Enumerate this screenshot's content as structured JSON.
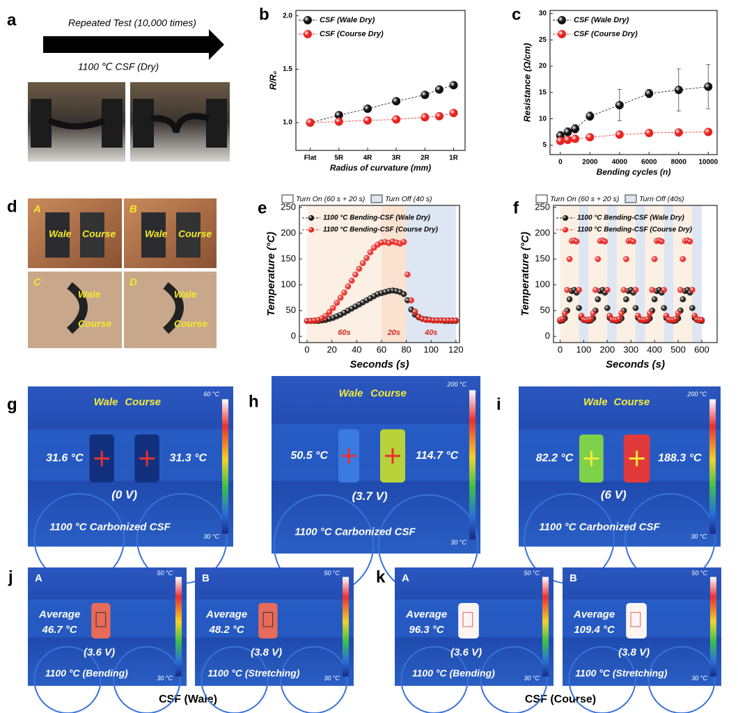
{
  "figure": {
    "a": {
      "label": "a",
      "arrow_text": "Repeated Test (10,000 times)",
      "caption": "1100 ℃ CSF (Dry)"
    },
    "d": {
      "label": "d",
      "photos": [
        {
          "letter": "A",
          "texts": [
            "Wale",
            "Course"
          ]
        },
        {
          "letter": "B",
          "texts": [
            "Wale",
            "Course"
          ]
        },
        {
          "letter": "C",
          "texts": [
            "Wale",
            "Course"
          ]
        },
        {
          "letter": "D",
          "texts": [
            "Wale",
            "Course"
          ]
        }
      ]
    },
    "thermal": [
      {
        "label": "g",
        "top": [
          "Wale",
          "Course"
        ],
        "readings": [
          "31.6 °C",
          "31.3 °C"
        ],
        "voltage": "(0 V)",
        "caption": "1100 °C Carbonized CSF",
        "scale_max": "60 °C",
        "scale_min": "30 °C"
      },
      {
        "label": "h",
        "top": [
          "Wale",
          "Course"
        ],
        "readings": [
          "50.5 °C",
          "114.7 °C"
        ],
        "voltage": "(3.7 V)",
        "caption": "1100 °C Carbonized CSF",
        "scale_max": "200 °C",
        "scale_min": "30 °C"
      },
      {
        "label": "i",
        "top": [
          "Wale",
          "Course"
        ],
        "readings": [
          "82.2 °C",
          "188.3 °C"
        ],
        "voltage": "(6 V)",
        "caption": "1100 °C Carbonized CSF",
        "scale_max": "200 °C",
        "scale_min": "30 °C"
      }
    ],
    "groups": [
      {
        "label": "j",
        "name": "CSF (Wale)",
        "images": [
          {
            "letter": "A",
            "average": "Average",
            "value": "46.7 °C",
            "voltage": "(3.6 V)",
            "caption": "1100 °C (Bending)",
            "scale_max": "50 °C",
            "scale_min": "30 °C"
          },
          {
            "letter": "B",
            "average": "Average",
            "value": "48.2 °C",
            "voltage": "(3.8 V)",
            "caption": "1100 °C (Stretching)",
            "scale_max": "50 °C",
            "scale_min": "30 °C"
          }
        ]
      },
      {
        "label": "k",
        "name": "CSF (Course)",
        "images": [
          {
            "letter": "A",
            "average": "Average",
            "value": "96.3 °C",
            "voltage": "(3.6 V)",
            "caption": "1100 °C (Bending)",
            "scale_max": "50 °C",
            "scale_min": "30 °C"
          },
          {
            "letter": "B",
            "average": "Average",
            "value": "109.4 °C",
            "voltage": "(3.8 V)",
            "caption": "1100 °C (Stretching)",
            "scale_max": "50 °C",
            "scale_min": "30 °C"
          }
        ]
      }
    ]
  },
  "chart_data": [
    {
      "label": "b",
      "type": "line",
      "xlabel": "Radius of curvature (mm)",
      "ylabel": "R/R₀",
      "x": [
        0,
        1,
        2,
        3,
        4,
        4.5,
        5
      ],
      "xticks": [
        {
          "value": 0,
          "label": "Flat"
        },
        {
          "value": 1,
          "label": "5R"
        },
        {
          "value": 2,
          "label": "4R"
        },
        {
          "value": 3,
          "label": "3R"
        },
        {
          "value": 4,
          "label": "2R"
        },
        {
          "value": 5,
          "label": "1R"
        }
      ],
      "xlim": [
        -0.5,
        5.4
      ],
      "ylim": [
        0.74,
        2.05
      ],
      "yticks": [
        {
          "value": 1,
          "label": "1.0"
        },
        1.5,
        {
          "value": 2,
          "label": "2.0"
        }
      ],
      "legend": "upper left",
      "series": [
        {
          "name": "CSF (Wale Dry)",
          "color": "#111111",
          "values": [
            1.0,
            1.07,
            1.13,
            1.2,
            1.26,
            1.31,
            1.35
          ]
        },
        {
          "name": "CSF (Course Dry)",
          "color": "#e8231f",
          "values": [
            1.0,
            1.01,
            1.02,
            1.03,
            1.05,
            1.06,
            1.09
          ]
        }
      ]
    },
    {
      "label": "c",
      "type": "line",
      "xlabel": "Bending cycles (n)",
      "ylabel": "Resistance (Ω/cm)",
      "x": [
        0,
        500,
        1000,
        2000,
        4000,
        6000,
        8000,
        10000
      ],
      "xticks": [
        0,
        2000,
        4000,
        6000,
        8000,
        10000
      ],
      "xlim": [
        -700,
        10600
      ],
      "ylim": [
        3.2,
        30.6
      ],
      "yticks": [
        5,
        10,
        15,
        20,
        25,
        30
      ],
      "legend": "upper left",
      "series": [
        {
          "name": "CSF (Wale Dry)",
          "color": "#111111",
          "values": [
            6.8,
            7.5,
            8.1,
            10.5,
            12.6,
            14.8,
            15.5,
            16.1
          ],
          "errors": [
            0.8,
            0.8,
            0.8,
            0.8,
            3.0,
            0.8,
            4.0,
            4.2
          ]
        },
        {
          "name": "CSF (Course Dry)",
          "color": "#e8231f",
          "values": [
            5.8,
            6.0,
            6.2,
            6.5,
            7.0,
            7.3,
            7.4,
            7.5
          ],
          "errors": [
            0.3,
            0.3,
            0.3,
            0.3,
            0.4,
            0.3,
            0.3,
            0.4
          ]
        }
      ]
    },
    {
      "label": "e",
      "type": "scatter",
      "xlabel": "Seconds (s)",
      "ylabel": "Temperature (°C)",
      "xlim": [
        -6.2,
        122.9
      ],
      "xticks": [
        0,
        20,
        40,
        60,
        80,
        100,
        120
      ],
      "ylim": [
        -12,
        254
      ],
      "yticks": [
        0,
        50,
        100,
        150,
        200,
        250
      ],
      "legend": "upper left",
      "region_legend": [
        {
          "label": "Turn On (60 s + 20 s)",
          "color": "#ffffff"
        },
        {
          "label": "Turn Off (40 s)",
          "color": "#dde6f2"
        }
      ],
      "regions": [
        {
          "start": 0,
          "end": 60,
          "color": "#fcefe4",
          "label": "60s"
        },
        {
          "start": 60,
          "end": 80,
          "color": "#f9e2d0",
          "label": "20s"
        },
        {
          "start": 80,
          "end": 120,
          "color": "#dde6f2",
          "label": "40s"
        }
      ],
      "x": [
        0,
        3,
        6,
        9,
        12,
        15,
        18,
        21,
        24,
        27,
        30,
        33,
        36,
        39,
        42,
        45,
        48,
        51,
        54,
        57,
        60,
        63,
        66,
        69,
        72,
        75,
        78,
        81,
        84,
        87,
        90,
        93,
        96,
        99,
        102,
        105,
        108,
        111,
        114,
        117,
        120
      ],
      "series": [
        {
          "name": "1100 °C Bending-CSF (Wale Dry)",
          "color": "#111111",
          "values": [
            30,
            30,
            30,
            30,
            31,
            32,
            34,
            36,
            39,
            42,
            46,
            50,
            54,
            58,
            62,
            66,
            70,
            74,
            78,
            82,
            84,
            86,
            88,
            89,
            88,
            86,
            82,
            70,
            52,
            42,
            37,
            34,
            33,
            32,
            31,
            31,
            31,
            30,
            30,
            30,
            30
          ]
        },
        {
          "name": "1100 °C Bending-CSF (Course Dry)",
          "color": "#e8231f",
          "values": [
            30,
            30,
            31,
            32,
            35,
            40,
            47,
            55,
            65,
            75,
            85,
            97,
            108,
            120,
            131,
            142,
            152,
            163,
            172,
            178,
            182,
            183,
            181,
            184,
            182,
            180,
            183,
            120,
            70,
            48,
            38,
            34,
            32,
            32,
            31,
            31,
            31,
            31,
            31,
            31,
            31
          ]
        }
      ]
    },
    {
      "label": "f",
      "type": "scatter",
      "xlabel": "Seconds (s)",
      "ylabel": "Temperature (°C)",
      "xlim": [
        -28,
        665
      ],
      "xticks": [
        0,
        100,
        200,
        300,
        400,
        500,
        600
      ],
      "ylim": [
        -12,
        254
      ],
      "yticks": [
        0,
        50,
        100,
        150,
        200,
        250
      ],
      "legend": "upper left",
      "region_legend": [
        {
          "label": "Turn On (60 s + 20 s)",
          "color": "#ffffff"
        },
        {
          "label": "Turn Off (40s)",
          "color": "#dde6f2"
        }
      ],
      "regions": [
        {
          "start": 0,
          "end": 80,
          "color": "#fcefe4"
        },
        {
          "start": 80,
          "end": 120,
          "color": "#dde6f2"
        },
        {
          "start": 120,
          "end": 200,
          "color": "#fcefe4"
        },
        {
          "start": 200,
          "end": 240,
          "color": "#dde6f2"
        },
        {
          "start": 240,
          "end": 320,
          "color": "#fcefe4"
        },
        {
          "start": 320,
          "end": 360,
          "color": "#dde6f2"
        },
        {
          "start": 360,
          "end": 440,
          "color": "#fcefe4"
        },
        {
          "start": 440,
          "end": 480,
          "color": "#dde6f2"
        },
        {
          "start": 480,
          "end": 560,
          "color": "#fcefe4"
        },
        {
          "start": 560,
          "end": 600,
          "color": "#dde6f2"
        }
      ],
      "x": [
        0,
        10,
        20,
        30,
        40,
        50,
        60,
        70,
        80,
        90,
        100,
        110,
        120,
        130,
        140,
        150,
        160,
        170,
        180,
        190,
        200,
        210,
        220,
        230,
        240,
        250,
        260,
        270,
        280,
        290,
        300,
        310,
        320,
        330,
        340,
        350,
        360,
        370,
        380,
        390,
        400,
        410,
        420,
        430,
        440,
        450,
        460,
        470,
        480,
        490,
        500,
        510,
        520,
        530,
        540,
        550,
        560,
        570,
        580,
        590,
        600
      ],
      "series": [
        {
          "name": "1100 °C Bending-CSF (Wale Dry)",
          "color": "#111111",
          "values": [
            30,
            31,
            35,
            50,
            72,
            88,
            90,
            85,
            55,
            36,
            32,
            31,
            30,
            31,
            35,
            50,
            72,
            88,
            90,
            85,
            55,
            36,
            32,
            31,
            30,
            31,
            35,
            50,
            72,
            88,
            90,
            85,
            55,
            36,
            32,
            31,
            30,
            31,
            35,
            50,
            72,
            88,
            90,
            85,
            55,
            36,
            32,
            31,
            30,
            31,
            35,
            50,
            72,
            88,
            90,
            85,
            55,
            36,
            32,
            31,
            30
          ]
        },
        {
          "name": "1100 °C Bending-CSF (Course Dry)",
          "color": "#e8231f",
          "values": [
            32,
            34,
            45,
            90,
            150,
            185,
            186,
            184,
            90,
            40,
            33,
            32,
            32,
            34,
            45,
            90,
            150,
            185,
            186,
            184,
            90,
            40,
            33,
            32,
            32,
            34,
            45,
            90,
            150,
            185,
            186,
            184,
            90,
            40,
            33,
            32,
            32,
            34,
            45,
            90,
            150,
            185,
            186,
            184,
            90,
            40,
            33,
            32,
            32,
            34,
            45,
            90,
            150,
            185,
            186,
            184,
            90,
            40,
            33,
            32,
            32
          ]
        }
      ]
    }
  ]
}
